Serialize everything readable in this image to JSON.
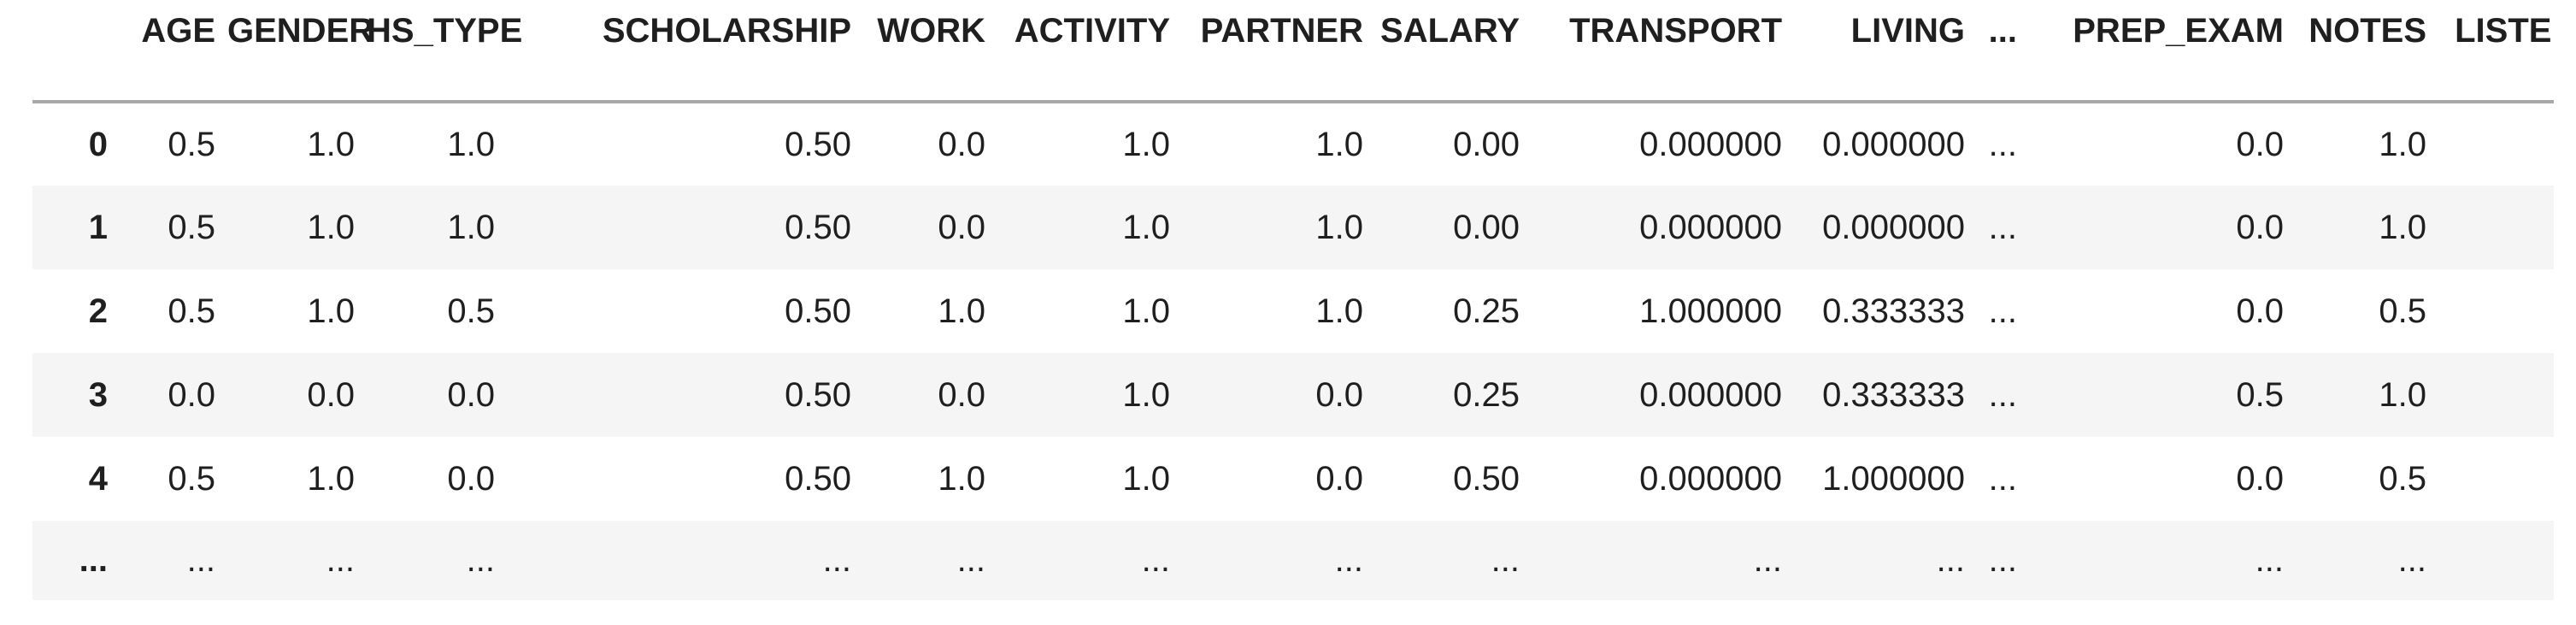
{
  "table": {
    "kind": "dataframe-preview",
    "index_header": "",
    "columns": [
      "AGE",
      "GENDER",
      "HS_TYPE",
      "SCHOLARSHIP",
      "WORK",
      "ACTIVITY",
      "PARTNER",
      "SALARY",
      "TRANSPORT",
      "LIVING",
      "...",
      "PREP_EXAM",
      "NOTES",
      "LISTENS"
    ],
    "rows": [
      {
        "index": "0",
        "cells": [
          "0.5",
          "1.0",
          "1.0",
          "0.50",
          "0.0",
          "1.0",
          "1.0",
          "0.00",
          "0.000000",
          "0.000000",
          "...",
          "0.0",
          "1.0",
          ""
        ]
      },
      {
        "index": "1",
        "cells": [
          "0.5",
          "1.0",
          "1.0",
          "0.50",
          "0.0",
          "1.0",
          "1.0",
          "0.00",
          "0.000000",
          "0.000000",
          "...",
          "0.0",
          "1.0",
          ""
        ]
      },
      {
        "index": "2",
        "cells": [
          "0.5",
          "1.0",
          "0.5",
          "0.50",
          "1.0",
          "1.0",
          "1.0",
          "0.25",
          "1.000000",
          "0.333333",
          "...",
          "0.0",
          "0.5",
          ""
        ]
      },
      {
        "index": "3",
        "cells": [
          "0.0",
          "0.0",
          "0.0",
          "0.50",
          "0.0",
          "1.0",
          "0.0",
          "0.25",
          "0.000000",
          "0.333333",
          "...",
          "0.5",
          "1.0",
          ""
        ]
      },
      {
        "index": "4",
        "cells": [
          "0.5",
          "1.0",
          "0.0",
          "0.50",
          "1.0",
          "1.0",
          "0.0",
          "0.50",
          "0.000000",
          "1.000000",
          "...",
          "0.0",
          "0.5",
          ""
        ]
      },
      {
        "index": "...",
        "cells": [
          "...",
          "...",
          "...",
          "...",
          "...",
          "...",
          "...",
          "...",
          "...",
          "...",
          "...",
          "...",
          "...",
          ""
        ]
      }
    ],
    "colors": {
      "stripe": "#f5f5f5",
      "rule": "#a8a8a8",
      "text": "#1f1f1f"
    }
  }
}
